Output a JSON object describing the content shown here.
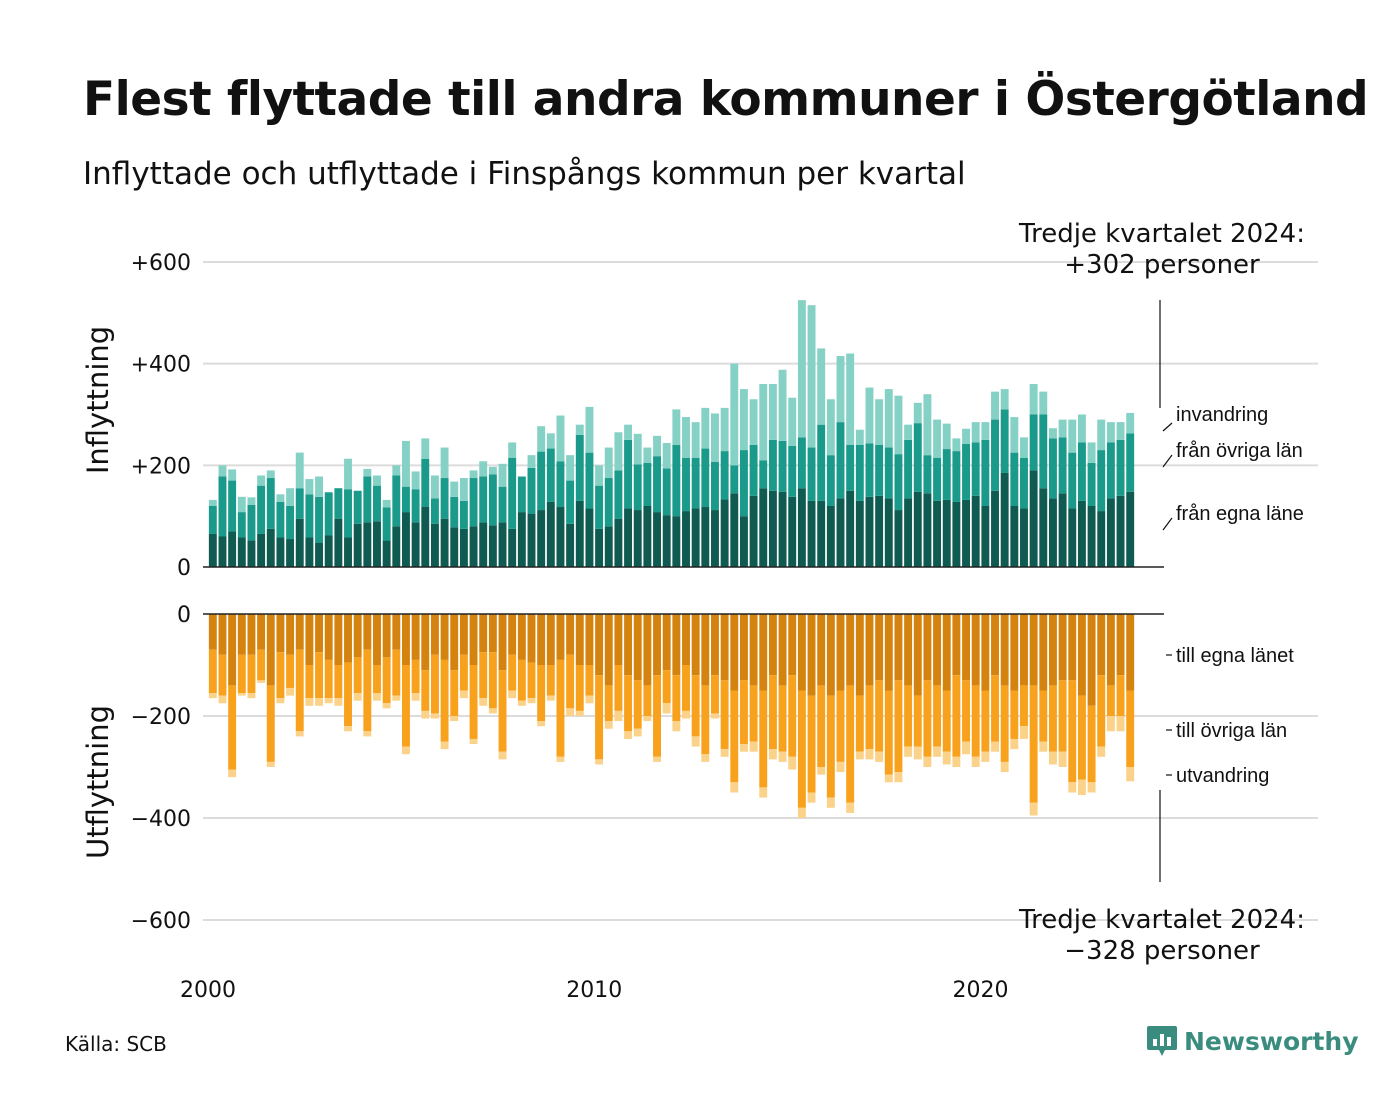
{
  "title": "Flest flyttade till andra kommuner i Östergötland",
  "subtitle": "Inflyttade och utflyttade i Finspångs kommun per kvartal",
  "source": "Källa: SCB",
  "brand": "Newsworthy",
  "colors": {
    "in_own": "#0f5b52",
    "in_other": "#1a9a8a",
    "in_imm": "#86d1c6",
    "out_own": "#d4830f",
    "out_other": "#f7a11d",
    "out_emi": "#fbd28a",
    "grid": "#dcdcdc",
    "brand": "#3a8d7e"
  },
  "chart_data": [
    {
      "type": "bar",
      "stacked": true,
      "panel": "top",
      "ylabel": "Inflyttning",
      "ylim": [
        0,
        620
      ],
      "yticks": [
        {
          "value": 0,
          "label": "0"
        },
        {
          "value": 200,
          "label": "+200"
        },
        {
          "value": 400,
          "label": "+400"
        },
        {
          "value": 600,
          "label": "+600"
        }
      ],
      "x_start": 2000.0,
      "x_step": 0.25,
      "xticks": [
        {
          "value": 2000,
          "label": "2000"
        },
        {
          "value": 2010,
          "label": "2010"
        },
        {
          "value": 2020,
          "label": "2020"
        }
      ],
      "series": [
        {
          "name": "från egna läne",
          "color_key": "in_own",
          "values": [
            65,
            60,
            70,
            58,
            52,
            65,
            75,
            58,
            55,
            95,
            58,
            48,
            62,
            95,
            58,
            85,
            88,
            90,
            52,
            80,
            108,
            88,
            118,
            85,
            95,
            78,
            75,
            80,
            88,
            82,
            88,
            75,
            108,
            105,
            112,
            128,
            118,
            85,
            130,
            115,
            75,
            80,
            95,
            115,
            112,
            120,
            108,
            102,
            100,
            110,
            115,
            118,
            112,
            133,
            145,
            100,
            140,
            155,
            150,
            148,
            138,
            155,
            130,
            130,
            120,
            135,
            150,
            130,
            138,
            140,
            135,
            112,
            135,
            148,
            145,
            130,
            132,
            128,
            132,
            140,
            120,
            150,
            185,
            120,
            115,
            190,
            155,
            135,
            145,
            115,
            130,
            120,
            110,
            135,
            140,
            148
          ]
        },
        {
          "name": "från övriga län",
          "color_key": "in_other",
          "values": [
            55,
            118,
            100,
            50,
            70,
            95,
            100,
            70,
            65,
            60,
            85,
            90,
            85,
            60,
            95,
            65,
            90,
            70,
            65,
            100,
            50,
            65,
            95,
            50,
            80,
            60,
            55,
            95,
            90,
            100,
            70,
            140,
            70,
            90,
            115,
            105,
            90,
            85,
            130,
            110,
            85,
            95,
            95,
            135,
            90,
            85,
            110,
            92,
            140,
            105,
            100,
            115,
            95,
            95,
            55,
            130,
            100,
            55,
            100,
            100,
            100,
            100,
            105,
            150,
            100,
            150,
            90,
            110,
            105,
            100,
            100,
            110,
            115,
            135,
            75,
            85,
            100,
            100,
            110,
            105,
            130,
            140,
            125,
            105,
            100,
            110,
            145,
            118,
            110,
            110,
            115,
            85,
            120,
            110,
            110,
            115
          ]
        },
        {
          "name": "invandring",
          "color_key": "in_imm",
          "values": [
            12,
            22,
            22,
            30,
            15,
            20,
            15,
            15,
            35,
            70,
            30,
            40,
            0,
            0,
            60,
            0,
            15,
            20,
            15,
            20,
            90,
            35,
            40,
            45,
            60,
            30,
            45,
            15,
            30,
            15,
            45,
            30,
            0,
            25,
            50,
            30,
            90,
            50,
            20,
            90,
            40,
            60,
            75,
            30,
            60,
            30,
            40,
            50,
            70,
            80,
            70,
            80,
            95,
            85,
            200,
            120,
            90,
            150,
            110,
            140,
            95,
            270,
            280,
            150,
            110,
            130,
            180,
            30,
            110,
            90,
            115,
            115,
            30,
            40,
            120,
            75,
            50,
            25,
            30,
            40,
            35,
            55,
            40,
            70,
            40,
            60,
            45,
            20,
            35,
            65,
            55,
            40,
            60,
            40,
            35,
            40
          ]
        }
      ]
    },
    {
      "type": "bar",
      "stacked": true,
      "panel": "bottom",
      "ylabel": "Utflyttning",
      "ylim": [
        -620,
        0
      ],
      "yticks": [
        {
          "value": 0,
          "label": "0"
        },
        {
          "value": -200,
          "label": "−200"
        },
        {
          "value": -400,
          "label": "−400"
        },
        {
          "value": -600,
          "label": "−600"
        }
      ],
      "x_start": 2000.0,
      "x_step": 0.25,
      "series": [
        {
          "name": "till egna länet",
          "color_key": "out_own",
          "values": [
            -70,
            -80,
            -140,
            -80,
            -80,
            -70,
            -140,
            -75,
            -80,
            -70,
            -100,
            -75,
            -90,
            -100,
            -95,
            -85,
            -70,
            -100,
            -85,
            -70,
            -100,
            -90,
            -110,
            -80,
            -90,
            -110,
            -80,
            -100,
            -75,
            -75,
            -110,
            -80,
            -90,
            -95,
            -100,
            -100,
            -90,
            -80,
            -100,
            -100,
            -120,
            -140,
            -100,
            -120,
            -130,
            -140,
            -120,
            -110,
            -120,
            -100,
            -120,
            -140,
            -120,
            -130,
            -150,
            -130,
            -140,
            -150,
            -120,
            -140,
            -120,
            -150,
            -160,
            -140,
            -160,
            -150,
            -140,
            -160,
            -140,
            -130,
            -150,
            -130,
            -140,
            -160,
            -130,
            -140,
            -150,
            -120,
            -130,
            -140,
            -150,
            -120,
            -140,
            -150,
            -140,
            -140,
            -150,
            -140,
            -130,
            -130,
            -160,
            -180,
            -120,
            -140,
            -120,
            -150
          ]
        },
        {
          "name": "till övriga län",
          "color_key": "out_other",
          "values": [
            -85,
            -80,
            -165,
            -75,
            -75,
            -60,
            -150,
            -90,
            -65,
            -160,
            -65,
            -90,
            -75,
            -65,
            -125,
            -70,
            -160,
            -55,
            -90,
            -90,
            -160,
            -65,
            -80,
            -115,
            -160,
            -90,
            -70,
            -145,
            -90,
            -110,
            -160,
            -70,
            -80,
            -70,
            -110,
            -60,
            -190,
            -105,
            -90,
            -60,
            -165,
            -70,
            -90,
            -110,
            -95,
            -60,
            -160,
            -65,
            -90,
            -90,
            -120,
            -135,
            -75,
            -135,
            -180,
            -125,
            -110,
            -190,
            -145,
            -130,
            -160,
            -230,
            -190,
            -160,
            -200,
            -140,
            -230,
            -110,
            -125,
            -140,
            -165,
            -180,
            -120,
            -100,
            -150,
            -120,
            -120,
            -160,
            -120,
            -140,
            -120,
            -130,
            -150,
            -95,
            -80,
            -230,
            -100,
            -130,
            -140,
            -200,
            -165,
            -150,
            -140,
            -60,
            -80,
            -150
          ]
        },
        {
          "name": "utvandring",
          "color_key": "out_emi",
          "values": [
            -10,
            -15,
            -15,
            -5,
            -10,
            -5,
            -10,
            -10,
            -15,
            -10,
            -15,
            -15,
            -10,
            -15,
            -10,
            -15,
            -10,
            -15,
            -10,
            -10,
            -15,
            -15,
            -15,
            -10,
            -15,
            -10,
            -15,
            -10,
            -15,
            -10,
            -15,
            -15,
            -10,
            -10,
            -10,
            -10,
            -10,
            -15,
            -10,
            -15,
            -10,
            -15,
            -20,
            -15,
            -15,
            -10,
            -10,
            -20,
            -20,
            -15,
            -20,
            -15,
            -10,
            -15,
            -20,
            -15,
            -20,
            -20,
            -20,
            -20,
            -25,
            -20,
            -20,
            -15,
            -20,
            -20,
            -20,
            -15,
            -20,
            -20,
            -15,
            -20,
            -20,
            -25,
            -20,
            -20,
            -25,
            -20,
            -25,
            -20,
            -20,
            -20,
            -20,
            -20,
            -25,
            -25,
            -20,
            -25,
            -30,
            -20,
            -30,
            -20,
            -20,
            -30,
            -30,
            -28
          ]
        }
      ]
    }
  ],
  "labels_in": [
    "invandring",
    "från övriga län",
    "från egna läne"
  ],
  "labels_out": [
    "till egna länet",
    "till övriga län",
    "utvandring"
  ],
  "annotation_top": {
    "line1": "Tredje kvartalet 2024:",
    "line2": "+302 personer"
  },
  "annotation_bottom": {
    "line1": "Tredje kvartalet 2024:",
    "line2": "−328 personer"
  }
}
